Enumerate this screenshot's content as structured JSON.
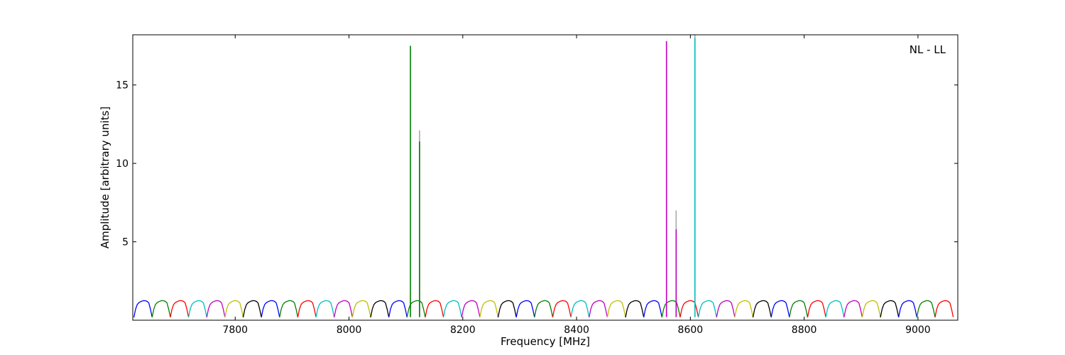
{
  "chart_data": {
    "type": "line",
    "title": "",
    "xlabel": "Frequency [MHz]",
    "ylabel": "Amplitude [arbitrary units]",
    "annotation": "NL - LL",
    "annotation_position": "top-right",
    "xlim": [
      7620,
      9070
    ],
    "ylim": [
      0,
      18.2
    ],
    "xticks": [
      7800,
      8000,
      8200,
      8400,
      8600,
      8800,
      9000
    ],
    "yticks": [
      5,
      10,
      15
    ],
    "grid": false,
    "legend": "none",
    "subband_width_mhz": 32,
    "subband_start_mhz": 7622,
    "subband_count": 45,
    "subband_profile": [
      0.18,
      0.7,
      1.0,
      1.12,
      1.18,
      1.22,
      1.25,
      1.24,
      1.2,
      1.1,
      0.7,
      0.2
    ],
    "subband_colors": [
      "#0000ff",
      "#007f00",
      "#ff0000",
      "#00bfbf",
      "#bf00bf",
      "#bfbf00",
      "#000000"
    ],
    "spikes": [
      {
        "x": 8108,
        "value": 17.5,
        "color": "#007f00"
      },
      {
        "x": 8124,
        "value": 11.4,
        "color": "#007f00"
      },
      {
        "x": 8124,
        "value": 12.1,
        "color": "#aaaaaa"
      },
      {
        "x": 8558,
        "value": 17.8,
        "color": "#bf00bf"
      },
      {
        "x": 8575,
        "value": 5.8,
        "color": "#bf00bf"
      },
      {
        "x": 8575,
        "value": 7.0,
        "color": "#aaaaaa"
      },
      {
        "x": 8608,
        "value": 18.0,
        "color": "#00bfbf"
      },
      {
        "x": 8608,
        "value": 18.2,
        "color": "#aaaaaa"
      }
    ]
  }
}
